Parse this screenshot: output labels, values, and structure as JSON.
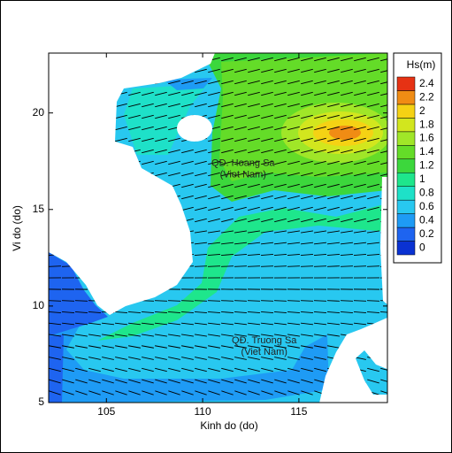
{
  "chart_data": {
    "type": "heatmap",
    "x_label": "Kinh do (do)",
    "y_label": "Vi do (do)",
    "xlim": [
      102,
      119.6
    ],
    "ylim": [
      5,
      23.1
    ],
    "xticks": [
      105,
      110,
      115
    ],
    "yticks": [
      5,
      10,
      15,
      20
    ],
    "annotations": [
      {
        "text": "QĐ. Hoang Sa",
        "x": 112.1,
        "y": 17.4
      },
      {
        "text": "(Viet Nam)",
        "x": 112.1,
        "y": 16.8
      },
      {
        "text": "QĐ. Truong Sa",
        "x": 113.2,
        "y": 8.2
      },
      {
        "text": "(Viet Nam)",
        "x": 113.2,
        "y": 7.6
      }
    ],
    "colorbar": {
      "title": "Hs(m)",
      "levels": [
        0,
        0.2,
        0.4,
        0.6,
        0.8,
        1,
        1.2,
        1.4,
        1.6,
        1.8,
        2,
        2.2,
        2.4
      ],
      "colors": [
        "#0a32d2",
        "#1e64f0",
        "#1e9bf5",
        "#28c8f0",
        "#1ee1c8",
        "#1ee68c",
        "#3cd73c",
        "#64dc28",
        "#a0e628",
        "#d2e61e",
        "#f5d214",
        "#f08c14",
        "#e63214"
      ]
    }
  }
}
